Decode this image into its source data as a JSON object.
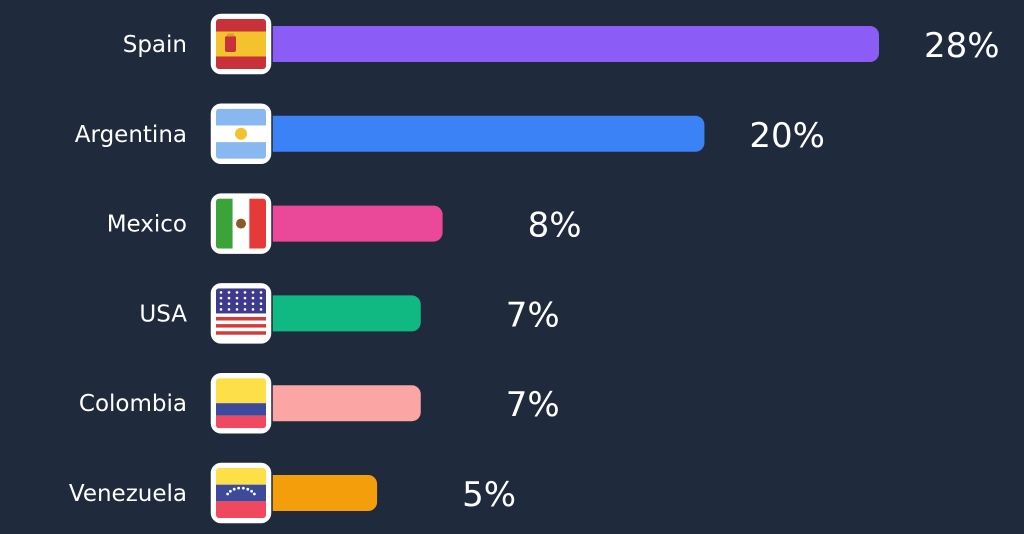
{
  "chart_data": {
    "type": "bar",
    "orientation": "horizontal",
    "categories": [
      "Spain",
      "Argentina",
      "Mexico",
      "USA",
      "Colombia",
      "Venezuela"
    ],
    "values": [
      28,
      20,
      8,
      7,
      7,
      5
    ],
    "value_labels": [
      "28%",
      "20%",
      "8%",
      "7%",
      "7%",
      "5%"
    ],
    "bar_colors": [
      "#8b5cf6",
      "#3b82f6",
      "#ec4899",
      "#10b981",
      "#fca5a5",
      "#f59e0b"
    ],
    "flags": [
      "spain-flag-icon",
      "argentina-flag-icon",
      "mexico-flag-icon",
      "usa-flag-icon",
      "colombia-flag-icon",
      "venezuela-flag-icon"
    ],
    "title": "",
    "xlabel": "",
    "ylabel": "",
    "grid": false,
    "legend": "none"
  },
  "colors": {
    "background": "#1f2a3c",
    "text": "#ffffff"
  }
}
